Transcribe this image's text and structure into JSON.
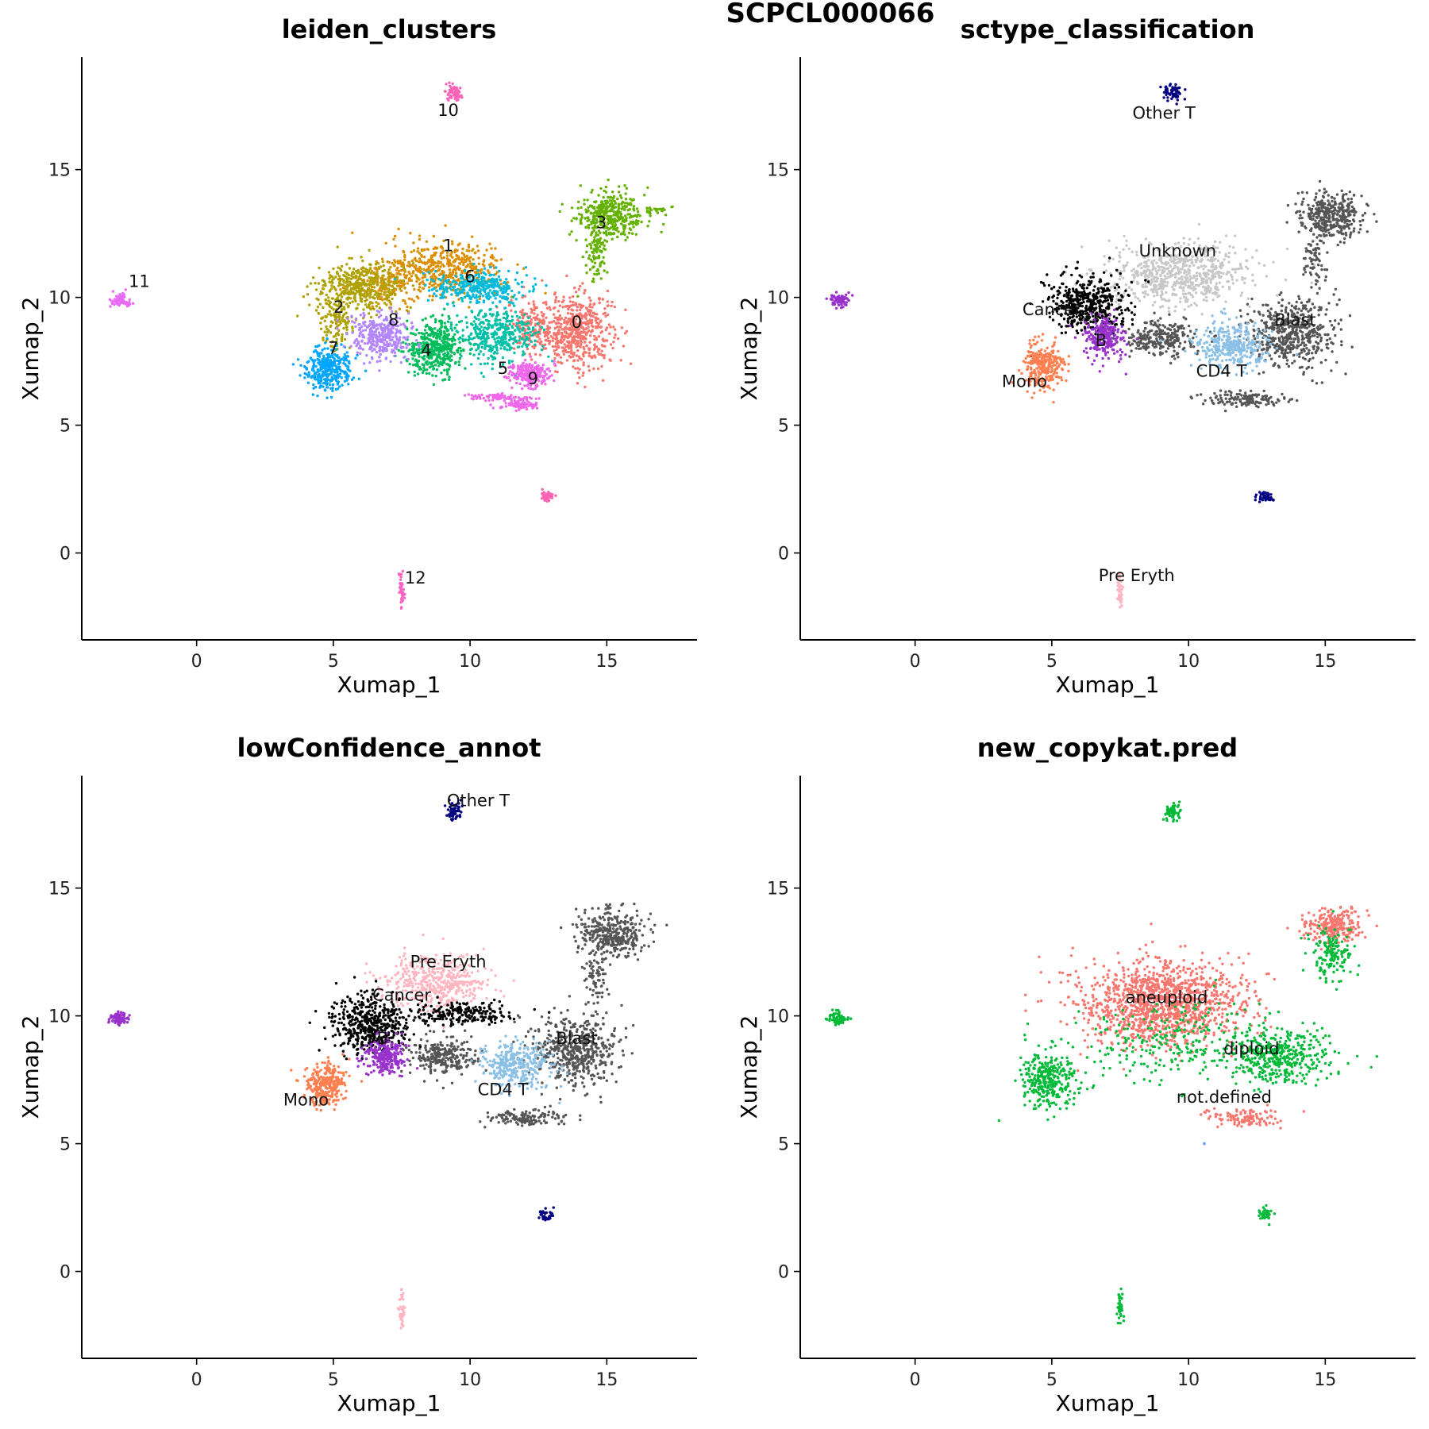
{
  "figure": {
    "title": "SCPCL000066"
  },
  "chart_data": [
    {
      "type": "scatter",
      "id": "leiden_clusters",
      "title": "leiden_clusters",
      "xlabel": "Xumap_1",
      "ylabel": "Xumap_2",
      "xlim": [
        -4.2,
        18.3
      ],
      "ylim": [
        -3.4,
        19.4
      ],
      "xticks": [
        0,
        5,
        10,
        15
      ],
      "yticks": [
        0,
        5,
        10,
        15
      ],
      "grid": false,
      "legend": "none",
      "series": [
        {
          "name": "0",
          "color": "#F8766D",
          "blobs": [
            [
              13.9,
              8.7,
              1.1,
              1.2,
              520
            ],
            [
              12.2,
              8.9,
              0.7,
              0.9,
              150
            ]
          ]
        },
        {
          "name": "1",
          "color": "#DB8E00",
          "blobs": [
            [
              9.1,
              11.1,
              1.8,
              0.9,
              460
            ],
            [
              7.0,
              10.5,
              1.2,
              0.7,
              150
            ]
          ]
        },
        {
          "name": "2",
          "color": "#AEA200",
          "blobs": [
            [
              6.0,
              10.4,
              1.3,
              0.8,
              420
            ],
            [
              5.1,
              9.1,
              0.5,
              0.8,
              120
            ]
          ]
        },
        {
          "name": "3",
          "color": "#64B200",
          "blobs": [
            [
              15.1,
              13.2,
              1.0,
              0.8,
              380
            ],
            [
              14.6,
              11.7,
              0.35,
              0.9,
              90
            ],
            [
              16.8,
              13.4,
              0.5,
              0.1,
              25
            ]
          ]
        },
        {
          "name": "4",
          "color": "#00BD5C",
          "blobs": [
            [
              8.7,
              8.0,
              0.9,
              0.9,
              430
            ]
          ]
        },
        {
          "name": "5",
          "color": "#00C1A7",
          "blobs": [
            [
              11.0,
              8.6,
              1.2,
              0.8,
              380
            ]
          ]
        },
        {
          "name": "6",
          "color": "#00BADE",
          "blobs": [
            [
              10.3,
              10.4,
              1.5,
              0.5,
              330
            ]
          ]
        },
        {
          "name": "7",
          "color": "#00A6FF",
          "blobs": [
            [
              4.8,
              7.2,
              0.7,
              0.7,
              330
            ]
          ]
        },
        {
          "name": "8",
          "color": "#B385FF",
          "blobs": [
            [
              6.7,
              8.5,
              0.9,
              0.7,
              310
            ]
          ]
        },
        {
          "name": "9",
          "color": "#EF67EB",
          "blobs": [
            [
              12.2,
              7.0,
              0.6,
              0.4,
              230
            ],
            [
              11.8,
              5.8,
              0.6,
              0.15,
              90
            ],
            [
              11.0,
              6.1,
              1.0,
              0.1,
              70
            ]
          ]
        },
        {
          "name": "10",
          "color": "#FF63B6",
          "blobs": [
            [
              9.4,
              18.0,
              0.25,
              0.3,
              60
            ],
            [
              12.8,
              2.2,
              0.25,
              0.2,
              40
            ]
          ]
        },
        {
          "name": "11",
          "color": "#E86BF3",
          "blobs": [
            [
              -2.8,
              9.9,
              0.3,
              0.2,
              70
            ]
          ]
        },
        {
          "name": "12",
          "color": "#FF61C3",
          "blobs": [
            [
              7.5,
              -1.5,
              0.08,
              0.6,
              40
            ]
          ]
        }
      ],
      "labels": [
        {
          "text": "0",
          "x": 13.9,
          "y": 8.8
        },
        {
          "text": "1",
          "x": 9.2,
          "y": 11.8
        },
        {
          "text": "2",
          "x": 5.2,
          "y": 9.4
        },
        {
          "text": "3",
          "x": 14.8,
          "y": 12.7
        },
        {
          "text": "4",
          "x": 8.4,
          "y": 7.7
        },
        {
          "text": "5",
          "x": 11.2,
          "y": 7.0
        },
        {
          "text": "6",
          "x": 10.0,
          "y": 10.6
        },
        {
          "text": "7",
          "x": 5.0,
          "y": 7.8
        },
        {
          "text": "8",
          "x": 7.2,
          "y": 8.9
        },
        {
          "text": "9",
          "x": 12.3,
          "y": 6.6
        },
        {
          "text": "10",
          "x": 9.2,
          "y": 17.1
        },
        {
          "text": "11",
          "x": -2.1,
          "y": 10.4
        },
        {
          "text": "12",
          "x": 8.0,
          "y": -1.2
        }
      ]
    },
    {
      "type": "scatter",
      "id": "sctype_classification",
      "title": "sctype_classification",
      "xlabel": "Xumap_1",
      "ylabel": "Xumap_2",
      "xlim": [
        -4.2,
        18.3
      ],
      "ylim": [
        -3.4,
        19.4
      ],
      "xticks": [
        0,
        5,
        10,
        15
      ],
      "yticks": [
        0,
        5,
        10,
        15
      ],
      "grid": false,
      "legend": "none",
      "series": [
        {
          "name": "Unknown",
          "color": "#C8C8C8",
          "blobs": [
            [
              9.6,
              10.9,
              2.2,
              1.0,
              680
            ]
          ]
        },
        {
          "name": "Blast",
          "color": "#555555",
          "blobs": [
            [
              13.8,
              8.6,
              1.3,
              1.1,
              520
            ],
            [
              15.2,
              13.2,
              1.0,
              0.8,
              360
            ],
            [
              9.0,
              8.4,
              1.1,
              0.6,
              260
            ],
            [
              12.0,
              6.0,
              1.2,
              0.25,
              140
            ],
            [
              14.6,
              11.6,
              0.35,
              0.9,
              70
            ]
          ]
        },
        {
          "name": "CD4 T",
          "color": "#8BC0E6",
          "blobs": [
            [
              11.6,
              8.1,
              1.1,
              0.8,
              330
            ]
          ]
        },
        {
          "name": "Cancer",
          "color": "#000000",
          "blobs": [
            [
              6.3,
              9.7,
              1.2,
              0.9,
              480
            ]
          ]
        },
        {
          "name": "B",
          "color": "#9932CC",
          "blobs": [
            [
              6.9,
              8.4,
              0.6,
              0.6,
              250
            ],
            [
              -2.8,
              9.9,
              0.3,
              0.2,
              70
            ]
          ]
        },
        {
          "name": "Mono",
          "color": "#FF7F50",
          "blobs": [
            [
              4.7,
              7.3,
              0.6,
              0.7,
              290
            ]
          ]
        },
        {
          "name": "Other T",
          "color": "#000080",
          "blobs": [
            [
              9.4,
              18.0,
              0.25,
              0.3,
              60
            ],
            [
              12.8,
              2.2,
              0.25,
              0.2,
              40
            ]
          ]
        },
        {
          "name": "Pre Eryth",
          "color": "#FFB6C1",
          "blobs": [
            [
              7.5,
              -1.5,
              0.08,
              0.6,
              40
            ]
          ]
        }
      ],
      "labels": [
        {
          "text": "Other T",
          "x": 9.1,
          "y": 17.0
        },
        {
          "text": "Unknown",
          "x": 9.6,
          "y": 11.6
        },
        {
          "text": "Cancer",
          "x": 5.0,
          "y": 9.3
        },
        {
          "text": "Blast",
          "x": 13.9,
          "y": 8.9
        },
        {
          "text": "B",
          "x": 6.8,
          "y": 8.1
        },
        {
          "text": "CD4 T",
          "x": 11.2,
          "y": 6.9
        },
        {
          "text": "Mono",
          "x": 4.0,
          "y": 6.5
        },
        {
          "text": "Pre Eryth",
          "x": 8.1,
          "y": -1.1
        }
      ]
    },
    {
      "type": "scatter",
      "id": "lowConfidence_annot",
      "title": "lowConfidence_annot",
      "xlabel": "Xumap_1",
      "ylabel": "Xumap_2",
      "xlim": [
        -4.2,
        18.3
      ],
      "ylim": [
        -3.4,
        19.4
      ],
      "xticks": [
        0,
        5,
        10,
        15
      ],
      "yticks": [
        0,
        5,
        10,
        15
      ],
      "grid": false,
      "legend": "none",
      "series": [
        {
          "name": "Pre Eryth",
          "color": "#FFB6C1",
          "blobs": [
            [
              8.8,
              11.3,
              1.6,
              0.9,
              450
            ],
            [
              7.5,
              -1.5,
              0.08,
              0.6,
              40
            ]
          ]
        },
        {
          "name": "Blast",
          "color": "#555555",
          "blobs": [
            [
              13.8,
              8.6,
              1.3,
              1.1,
              520
            ],
            [
              15.2,
              13.2,
              1.0,
              0.8,
              360
            ],
            [
              9.0,
              8.4,
              1.1,
              0.6,
              260
            ],
            [
              12.0,
              6.0,
              1.2,
              0.25,
              140
            ],
            [
              14.6,
              11.6,
              0.35,
              0.9,
              70
            ]
          ]
        },
        {
          "name": "CD4 T",
          "color": "#8BC0E6",
          "blobs": [
            [
              11.6,
              8.1,
              1.1,
              0.8,
              330
            ]
          ]
        },
        {
          "name": "Cancer",
          "color": "#000000",
          "blobs": [
            [
              6.3,
              9.7,
              1.2,
              0.9,
              480
            ],
            [
              9.7,
              10.1,
              1.8,
              0.35,
              220
            ]
          ]
        },
        {
          "name": "B",
          "color": "#9932CC",
          "blobs": [
            [
              6.9,
              8.4,
              0.6,
              0.6,
              250
            ],
            [
              -2.8,
              9.9,
              0.3,
              0.2,
              70
            ]
          ]
        },
        {
          "name": "Mono",
          "color": "#FF7F50",
          "blobs": [
            [
              4.7,
              7.3,
              0.6,
              0.7,
              290
            ]
          ]
        },
        {
          "name": "Other T",
          "color": "#000080",
          "blobs": [
            [
              9.4,
              18.0,
              0.25,
              0.3,
              60
            ],
            [
              12.8,
              2.2,
              0.25,
              0.2,
              40
            ]
          ]
        }
      ],
      "labels": [
        {
          "text": "Other T",
          "x": 10.3,
          "y": 18.2
        },
        {
          "text": "Pre Eryth",
          "x": 9.2,
          "y": 11.9
        },
        {
          "text": "Cancer",
          "x": 7.5,
          "y": 10.6
        },
        {
          "text": "Blast",
          "x": 13.9,
          "y": 8.9
        },
        {
          "text": "B",
          "x": 6.8,
          "y": 8.9
        },
        {
          "text": "CD4 T",
          "x": 11.2,
          "y": 6.9
        },
        {
          "text": "Mono",
          "x": 4.0,
          "y": 6.5
        }
      ]
    },
    {
      "type": "scatter",
      "id": "new_copykat.pred",
      "title": "new_copykat.pred",
      "xlabel": "Xumap_1",
      "ylabel": "Xumap_2",
      "xlim": [
        -4.2,
        18.3
      ],
      "ylim": [
        -3.4,
        19.4
      ],
      "xticks": [
        0,
        5,
        10,
        15
      ],
      "yticks": [
        0,
        5,
        10,
        15
      ],
      "grid": false,
      "legend": "none",
      "series": [
        {
          "name": "aneuploid",
          "color": "#F8766D",
          "blobs": [
            [
              9.0,
              10.5,
              2.6,
              1.4,
              1300
            ],
            [
              15.3,
              13.5,
              0.9,
              0.6,
              250
            ],
            [
              12.0,
              6.0,
              1.2,
              0.3,
              110
            ]
          ]
        },
        {
          "name": "diploid",
          "color": "#00BA38",
          "blobs": [
            [
              13.4,
              8.4,
              1.5,
              0.9,
              420
            ],
            [
              4.9,
              7.5,
              0.8,
              0.9,
              320
            ],
            [
              15.2,
              12.4,
              0.6,
              0.9,
              150
            ],
            [
              9.5,
              9.0,
              3.0,
              1.4,
              260
            ],
            [
              9.4,
              18.0,
              0.25,
              0.3,
              60
            ],
            [
              -2.8,
              9.9,
              0.3,
              0.2,
              70
            ],
            [
              12.8,
              2.2,
              0.25,
              0.2,
              40
            ],
            [
              7.5,
              -1.5,
              0.08,
              0.6,
              40
            ]
          ]
        },
        {
          "name": "not.defined",
          "color": "#619CFF",
          "blobs": [
            [
              10.6,
              5.0,
              0.05,
              0.05,
              2
            ]
          ]
        }
      ],
      "labels": [
        {
          "text": "aneuploid",
          "x": 9.2,
          "y": 10.5
        },
        {
          "text": "diploid",
          "x": 12.3,
          "y": 8.5
        },
        {
          "text": "not.defined",
          "x": 11.3,
          "y": 6.6
        }
      ]
    }
  ]
}
